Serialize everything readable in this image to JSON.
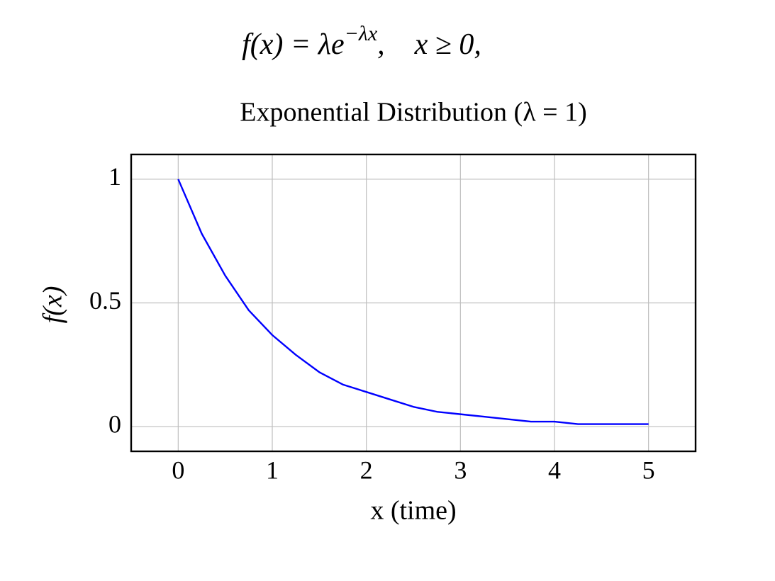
{
  "formula": {
    "base": "f(x) = λe",
    "exponent": "−λx",
    "tail": ",    x ≥ 0,"
  },
  "chart_data": {
    "type": "line",
    "title": "Exponential Distribution (λ = 1)",
    "xlabel": "x (time)",
    "ylabel": "f(x)",
    "x": [
      0,
      0.25,
      0.5,
      0.75,
      1,
      1.25,
      1.5,
      1.75,
      2,
      2.25,
      2.5,
      2.75,
      3,
      3.25,
      3.5,
      3.75,
      4,
      4.25,
      4.5,
      4.75,
      5
    ],
    "series": [
      {
        "color": "#0000ff",
        "values": [
          1,
          0.78,
          0.61,
          0.47,
          0.37,
          0.29,
          0.22,
          0.17,
          0.14,
          0.11,
          0.08,
          0.06,
          0.05,
          0.04,
          0.03,
          0.02,
          0.02,
          0.01,
          0.01,
          0.01,
          0.01
        ]
      }
    ],
    "xlim": [
      -0.5,
      5.5
    ],
    "ylim": [
      -0.1,
      1.1
    ],
    "xticks": [
      0,
      1,
      2,
      3,
      4,
      5
    ],
    "yticks": [
      0,
      0.5,
      1
    ],
    "grid": true
  }
}
